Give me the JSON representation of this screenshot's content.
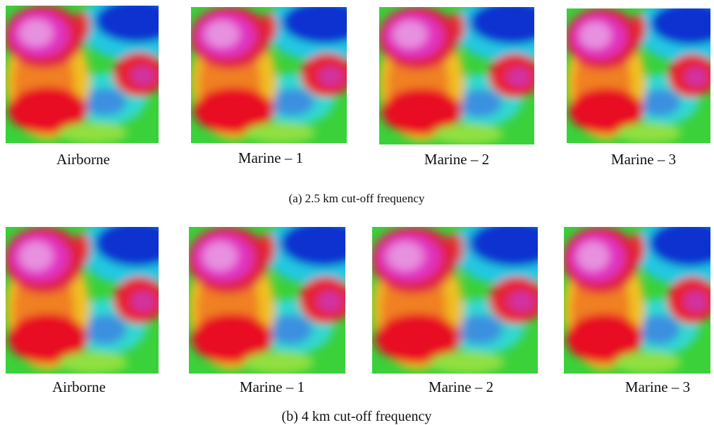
{
  "rows": [
    {
      "panels": [
        "Airborne",
        "Marine – 1",
        "Marine – 2",
        "Marine – 3"
      ],
      "caption": "(a)  2.5 km cut-off frequency"
    },
    {
      "panels": [
        "Airborne",
        "Marine – 1",
        "Marine – 2",
        "Marine – 3"
      ],
      "caption": "(b) 4 km cut-off frequency"
    }
  ]
}
